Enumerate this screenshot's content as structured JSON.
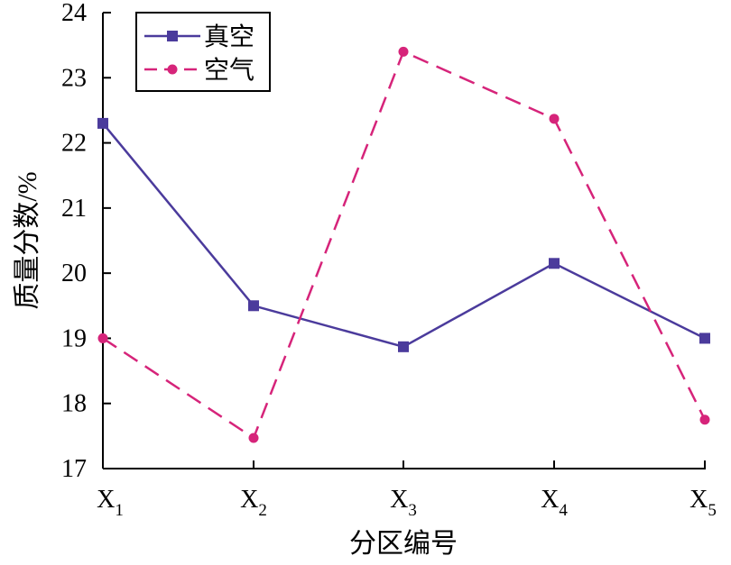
{
  "chart_data": {
    "type": "line",
    "categories": [
      "X1",
      "X2",
      "X3",
      "X4",
      "X5"
    ],
    "category_labels": [
      {
        "main": "X",
        "sub": "1"
      },
      {
        "main": "X",
        "sub": "2"
      },
      {
        "main": "X",
        "sub": "3"
      },
      {
        "main": "X",
        "sub": "4"
      },
      {
        "main": "X",
        "sub": "5"
      }
    ],
    "series": [
      {
        "name": "真空",
        "values": [
          22.3,
          19.5,
          18.87,
          20.15,
          19.0
        ],
        "color": "#4b3b9c",
        "marker": "square",
        "dash": "solid"
      },
      {
        "name": "空气",
        "values": [
          19.0,
          17.47,
          23.4,
          22.37,
          17.75
        ],
        "color": "#d6247a",
        "marker": "circle",
        "dash": "dashed"
      }
    ],
    "xlabel": "分区编号",
    "ylabel": "质量分数/%",
    "ylim": [
      17,
      24
    ],
    "yticks": [
      17,
      18,
      19,
      20,
      21,
      22,
      23,
      24
    ],
    "grid": false,
    "legend": "top-left"
  }
}
